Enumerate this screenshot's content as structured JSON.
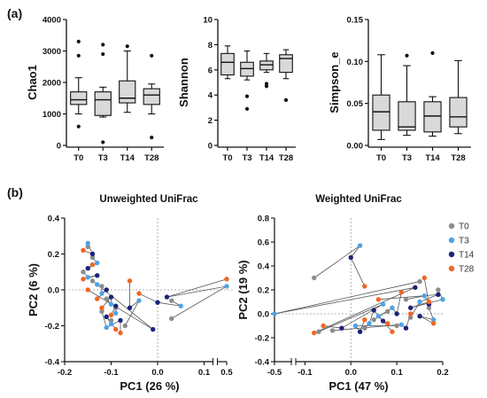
{
  "panel_labels": {
    "a": "(a)",
    "b": "(b)"
  },
  "chart_data": [
    {
      "type": "box",
      "ylabel": "Chao1",
      "categories": [
        "T0",
        "T3",
        "T14",
        "T28"
      ],
      "ylim": [
        0,
        4000
      ],
      "yticks": [
        0,
        1000,
        2000,
        3000,
        4000
      ],
      "boxes": [
        {
          "min": 1000,
          "q1": 1300,
          "median": 1450,
          "q3": 1700,
          "max": 2150,
          "outliers": [
            600,
            2850,
            3300
          ]
        },
        {
          "min": 900,
          "q1": 950,
          "median": 1450,
          "q3": 1700,
          "max": 1850,
          "outliers": [
            100,
            2900,
            3200
          ]
        },
        {
          "min": 1050,
          "q1": 1350,
          "median": 1500,
          "q3": 2050,
          "max": 3000,
          "outliers": [
            3150
          ]
        },
        {
          "min": 1000,
          "q1": 1300,
          "median": 1600,
          "q3": 1800,
          "max": 1950,
          "outliers": [
            250,
            2850
          ]
        }
      ]
    },
    {
      "type": "box",
      "ylabel": "Shannon",
      "categories": [
        "T0",
        "T3",
        "T14",
        "T28"
      ],
      "ylim": [
        0,
        10
      ],
      "yticks": [
        0,
        2,
        4,
        6,
        8,
        10
      ],
      "boxes": [
        {
          "min": 5.3,
          "q1": 5.6,
          "median": 6.6,
          "q3": 7.3,
          "max": 7.9,
          "outliers": []
        },
        {
          "min": 5.2,
          "q1": 5.5,
          "median": 6.1,
          "q3": 6.6,
          "max": 7.5,
          "outliers": [
            2.9,
            3.9
          ]
        },
        {
          "min": 5.8,
          "q1": 6.0,
          "median": 6.4,
          "q3": 6.7,
          "max": 7.3,
          "outliers": [
            4.7,
            4.9
          ]
        },
        {
          "min": 5.3,
          "q1": 5.8,
          "median": 6.9,
          "q3": 7.2,
          "max": 7.6,
          "outliers": [
            3.6
          ]
        }
      ]
    },
    {
      "type": "box",
      "ylabel": "Simpson_e",
      "categories": [
        "T0",
        "T3",
        "T14",
        "T28"
      ],
      "ylim": [
        0,
        0.15
      ],
      "yticks": [
        0.0,
        0.05,
        0.1,
        0.15
      ],
      "ytick_labels": [
        "0.00",
        "0.05",
        "0.10",
        "0.15"
      ],
      "boxes": [
        {
          "min": 0.007,
          "q1": 0.018,
          "median": 0.04,
          "q3": 0.06,
          "max": 0.108,
          "outliers": []
        },
        {
          "min": 0.012,
          "q1": 0.018,
          "median": 0.022,
          "q3": 0.052,
          "max": 0.095,
          "outliers": [
            0.107
          ]
        },
        {
          "min": 0.011,
          "q1": 0.016,
          "median": 0.035,
          "q3": 0.052,
          "max": 0.058,
          "outliers": [
            0.11
          ]
        },
        {
          "min": 0.014,
          "q1": 0.022,
          "median": 0.034,
          "q3": 0.057,
          "max": 0.101,
          "outliers": []
        }
      ]
    },
    {
      "type": "scatter",
      "title": "Unweighted UniFrac",
      "xlabel": "PC1 (26 %)",
      "ylabel": "PC2 (6 %)",
      "xlim": [
        -0.2,
        0.5
      ],
      "x_axis_break": [
        0.12,
        0.48
      ],
      "ylim": [
        -0.4,
        0.4
      ],
      "xticks": [
        -0.2,
        -0.1,
        0.0,
        0.1,
        0.5
      ],
      "xtick_labels": [
        "-0.2",
        "-0.1",
        "0.0",
        "0.1",
        "0.5"
      ],
      "yticks": [
        -0.4,
        -0.2,
        0.0,
        0.2,
        0.4
      ],
      "ytick_labels": [
        "-0.4",
        "-0.2",
        "0.0",
        "0.2",
        "0.4"
      ],
      "series": [
        {
          "name": "T0",
          "color": "#8c8c8c",
          "points": [
            [
              -0.15,
              0.24
            ],
            [
              -0.14,
              0.18
            ],
            [
              -0.16,
              0.1
            ],
            [
              -0.12,
              0.02
            ],
            [
              -0.11,
              -0.05
            ],
            [
              -0.09,
              -0.1
            ],
            [
              -0.1,
              -0.17
            ],
            [
              -0.07,
              -0.2
            ],
            [
              0.03,
              -0.06
            ],
            [
              0.03,
              -0.16
            ],
            [
              -0.12,
              -0.12
            ],
            [
              -0.14,
              0.05
            ]
          ]
        },
        {
          "name": "T3",
          "color": "#4da3e8",
          "points": [
            [
              -0.15,
              0.26
            ],
            [
              -0.13,
              0.15
            ],
            [
              -0.15,
              0.07
            ],
            [
              -0.12,
              -0.02
            ],
            [
              -0.1,
              -0.08
            ],
            [
              -0.09,
              -0.13
            ],
            [
              -0.1,
              -0.19
            ],
            [
              -0.04,
              -0.06
            ],
            [
              0.05,
              -0.09
            ],
            [
              0.5,
              0.02
            ],
            [
              -0.11,
              -0.21
            ],
            [
              -0.13,
              0.03
            ]
          ]
        },
        {
          "name": "T14",
          "color": "#1c2377",
          "points": [
            [
              -0.14,
              0.2
            ],
            [
              -0.15,
              0.12
            ],
            [
              -0.13,
              0.08
            ],
            [
              -0.11,
              0.0
            ],
            [
              -0.1,
              -0.04
            ],
            [
              -0.09,
              -0.09
            ],
            [
              -0.11,
              -0.15
            ],
            [
              -0.06,
              -0.1
            ],
            [
              0.0,
              -0.07
            ],
            [
              0.02,
              -0.04
            ],
            [
              -0.08,
              -0.17
            ],
            [
              -0.01,
              -0.22
            ]
          ]
        },
        {
          "name": "T28",
          "color": "#f26522",
          "points": [
            [
              -0.16,
              0.22
            ],
            [
              -0.14,
              0.14
            ],
            [
              -0.16,
              0.06
            ],
            [
              -0.13,
              -0.05
            ],
            [
              -0.12,
              -0.1
            ],
            [
              -0.1,
              -0.14
            ],
            [
              -0.09,
              -0.22
            ],
            [
              -0.06,
              0.05
            ],
            [
              -0.04,
              -0.02
            ],
            [
              0.5,
              0.06
            ],
            [
              -0.08,
              -0.24
            ],
            [
              -0.15,
              0.0
            ]
          ]
        }
      ]
    },
    {
      "type": "scatter",
      "title": "Weighted UniFrac",
      "xlabel": "PC1 (47 %)",
      "ylabel": "PC2 (19 %)",
      "xlim": [
        -0.5,
        0.2
      ],
      "x_axis_break": [
        -0.48,
        -0.12
      ],
      "ylim": [
        -0.4,
        0.8
      ],
      "xticks": [
        -0.5,
        -0.1,
        0.0,
        0.1,
        0.2
      ],
      "xtick_labels": [
        "-0.5",
        "-0.1",
        "0.0",
        "0.1",
        "0.2"
      ],
      "yticks": [
        -0.4,
        -0.2,
        0.0,
        0.2,
        0.4,
        0.6,
        0.8
      ],
      "ytick_labels": [
        "-0.4",
        "-0.2",
        "0.0",
        "0.2",
        "0.4",
        "0.6",
        "0.8"
      ],
      "series": [
        {
          "name": "T0",
          "color": "#8c8c8c",
          "points": [
            [
              -0.08,
              0.3
            ],
            [
              0.15,
              0.27
            ],
            [
              0.12,
              0.12
            ],
            [
              0.05,
              -0.05
            ],
            [
              0.08,
              0.02
            ],
            [
              -0.04,
              -0.14
            ],
            [
              0.1,
              -0.1
            ],
            [
              0.17,
              0.05
            ],
            [
              0.13,
              -0.03
            ],
            [
              0.03,
              -0.12
            ],
            [
              0.19,
              0.2
            ],
            [
              -0.07,
              -0.15
            ]
          ]
        },
        {
          "name": "T3",
          "color": "#4da3e8",
          "points": [
            [
              0.02,
              0.57
            ],
            [
              -0.5,
              0.0
            ],
            [
              0.16,
              0.15
            ],
            [
              0.09,
              0.05
            ],
            [
              0.06,
              -0.02
            ],
            [
              0.11,
              -0.09
            ],
            [
              0.01,
              -0.1
            ],
            [
              0.18,
              -0.05
            ],
            [
              0.15,
              0.1
            ],
            [
              0.04,
              -0.08
            ],
            [
              0.2,
              0.12
            ],
            [
              0.07,
              0.08
            ]
          ]
        },
        {
          "name": "T14",
          "color": "#1c2377",
          "points": [
            [
              0.0,
              0.47
            ],
            [
              0.14,
              0.22
            ],
            [
              0.17,
              0.08
            ],
            [
              0.1,
              0.0
            ],
            [
              0.07,
              -0.06
            ],
            [
              0.12,
              -0.12
            ],
            [
              0.02,
              -0.15
            ],
            [
              0.15,
              -0.02
            ],
            [
              0.19,
              0.16
            ],
            [
              0.05,
              0.03
            ],
            [
              0.13,
              0.05
            ],
            [
              -0.02,
              -0.12
            ]
          ]
        },
        {
          "name": "T28",
          "color": "#f26522",
          "points": [
            [
              0.03,
              0.23
            ],
            [
              -0.08,
              -0.16
            ],
            [
              0.16,
              0.3
            ],
            [
              0.11,
              0.18
            ],
            [
              0.08,
              -0.08
            ],
            [
              0.13,
              0.0
            ],
            [
              0.03,
              -0.05
            ],
            [
              0.18,
              -0.08
            ],
            [
              0.06,
              0.12
            ],
            [
              0.09,
              -0.15
            ],
            [
              0.17,
              0.1
            ],
            [
              -0.06,
              -0.1
            ]
          ]
        }
      ]
    }
  ]
}
